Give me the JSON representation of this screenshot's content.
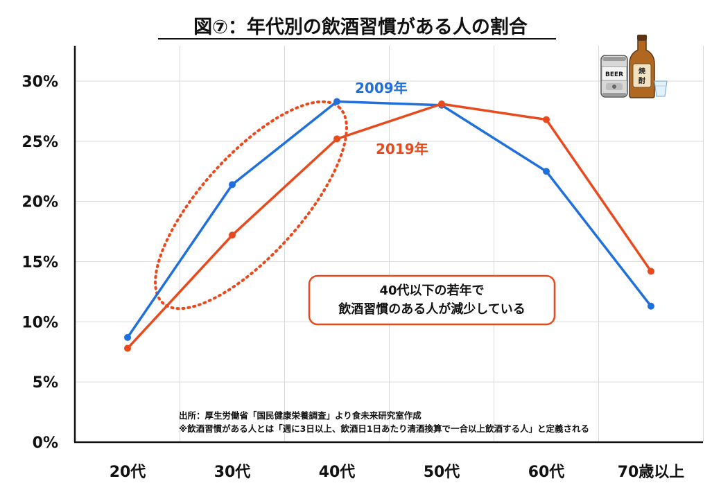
{
  "chart_data": {
    "type": "line",
    "title": "図⑦：年代別の飲酒習慣がある人の割合",
    "categories": [
      "20代",
      "30代",
      "40代",
      "50代",
      "60代",
      "70歳以上"
    ],
    "ylim": [
      0,
      30
    ],
    "yticks": [
      0,
      5,
      10,
      15,
      20,
      25,
      30
    ],
    "ytick_labels": [
      "0%",
      "5%",
      "10%",
      "15%",
      "20%",
      "25%",
      "30%"
    ],
    "grid": true,
    "series": [
      {
        "name": "2009年",
        "color": "#1f6fdc",
        "values": [
          8.7,
          21.4,
          28.3,
          28.0,
          22.5,
          11.3
        ]
      },
      {
        "name": "2019年",
        "color": "#e8491d",
        "values": [
          7.8,
          17.2,
          25.2,
          28.1,
          26.8,
          14.2
        ]
      }
    ],
    "annotation": {
      "lines": [
        "40代以下の若年で",
        "飲酒習慣のある人が減少している"
      ],
      "border_color": "#e8491d"
    },
    "highlight_color": "#e8491d",
    "source_lines": [
      "出所：厚生労働省「国民健康栄養調査」より食未来研究室作成",
      "※飲酒習慣がある人とは「週に3日以上、飲酒日1日あたり清酒換算で一合以上飲酒する人」と定義される"
    ]
  },
  "illustration": {
    "beer_can_label": "BEER",
    "bottle_label": [
      "焼",
      "酎"
    ],
    "icons": [
      "beer-can-icon",
      "shochu-bottle-icon",
      "glass-icon"
    ]
  }
}
